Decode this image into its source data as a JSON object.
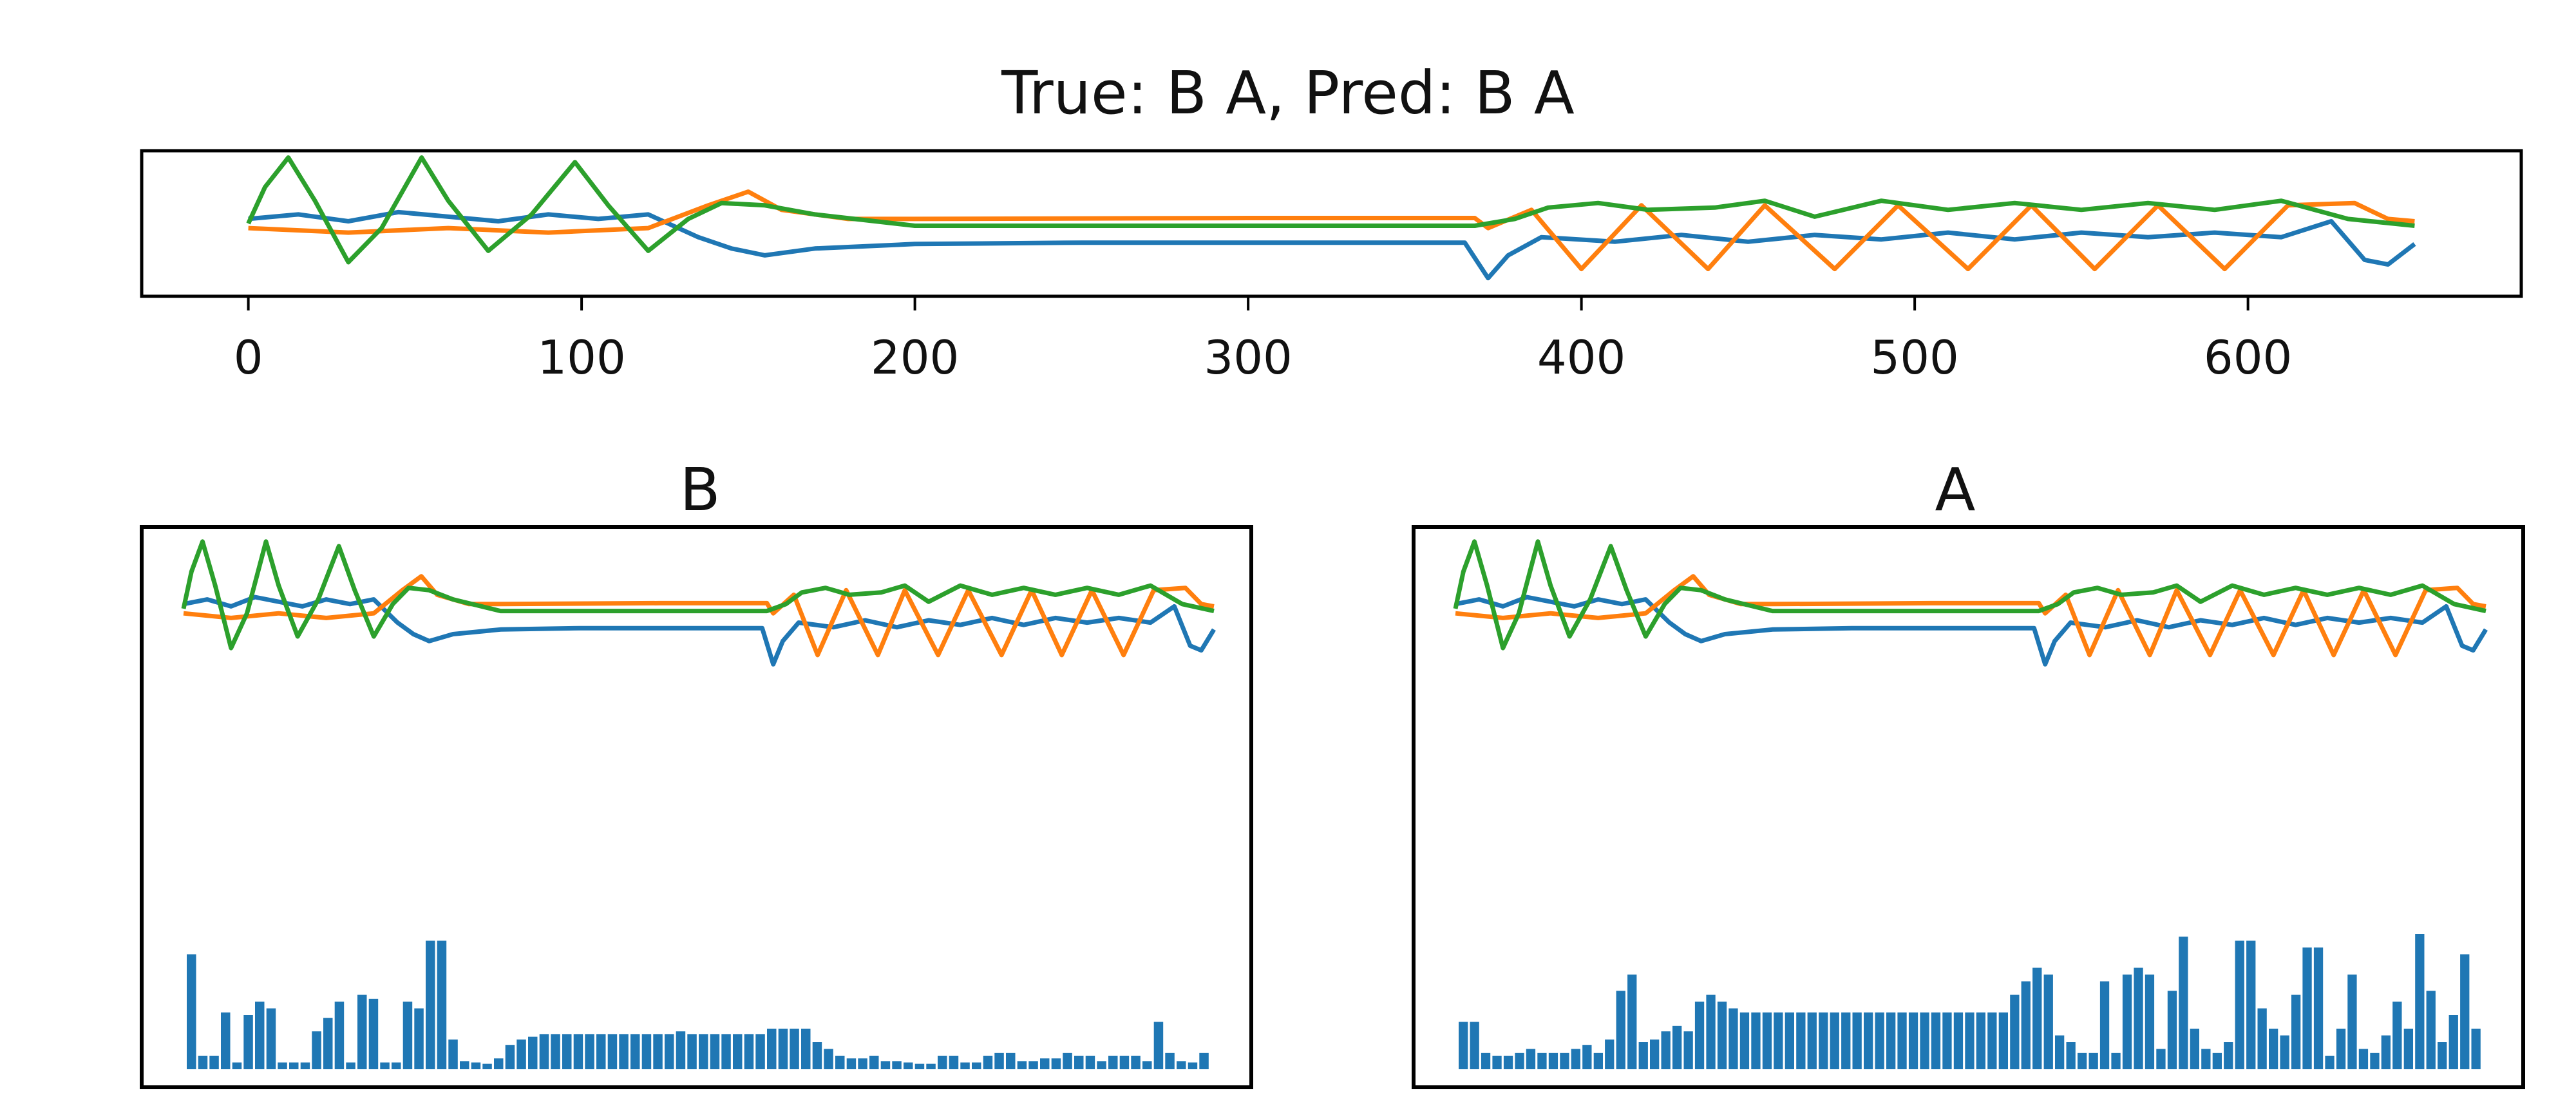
{
  "figure_title": "True: B A, Pred: B A",
  "chart_data": [
    {
      "type": "line",
      "title": "True: B A, Pred: B A",
      "xlabel": "",
      "ylabel": "",
      "xlim": [
        -32,
        682
      ],
      "ylim": [
        -1.6,
        1.6
      ],
      "x_ticks": [
        "0",
        "100",
        "200",
        "300",
        "400",
        "500",
        "600"
      ],
      "grid": false,
      "series_colors": [
        "#1f77b4",
        "#ff7f0e",
        "#2ca02c"
      ],
      "note": "Three channels (blue, orange, green), x from 0 to 650; y axis unlabeled. Series given as [x, y] breakpoints read off the plot.",
      "series": [
        {
          "name": "blue",
          "points": [
            [
              0,
              0.1
            ],
            [
              15,
              0.2
            ],
            [
              30,
              0.05
            ],
            [
              45,
              0.25
            ],
            [
              60,
              0.15
            ],
            [
              75,
              0.05
            ],
            [
              90,
              0.2
            ],
            [
              105,
              0.1
            ],
            [
              120,
              0.2
            ],
            [
              135,
              -0.3
            ],
            [
              145,
              -0.55
            ],
            [
              155,
              -0.7
            ],
            [
              170,
              -0.55
            ],
            [
              200,
              -0.45
            ],
            [
              250,
              -0.42
            ],
            [
              300,
              -0.42
            ],
            [
              365,
              -0.42
            ],
            [
              372,
              -1.2
            ],
            [
              378,
              -0.7
            ],
            [
              388,
              -0.3
            ],
            [
              410,
              -0.4
            ],
            [
              430,
              -0.25
            ],
            [
              450,
              -0.4
            ],
            [
              470,
              -0.25
            ],
            [
              490,
              -0.35
            ],
            [
              510,
              -0.2
            ],
            [
              530,
              -0.35
            ],
            [
              550,
              -0.2
            ],
            [
              570,
              -0.3
            ],
            [
              590,
              -0.2
            ],
            [
              610,
              -0.3
            ],
            [
              625,
              0.05
            ],
            [
              635,
              -0.8
            ],
            [
              642,
              -0.9
            ],
            [
              650,
              -0.45
            ]
          ]
        },
        {
          "name": "orange",
          "points": [
            [
              0,
              -0.1
            ],
            [
              30,
              -0.2
            ],
            [
              60,
              -0.1
            ],
            [
              90,
              -0.2
            ],
            [
              120,
              -0.1
            ],
            [
              138,
              0.4
            ],
            [
              150,
              0.7
            ],
            [
              160,
              0.3
            ],
            [
              180,
              0.1
            ],
            [
              200,
              0.1
            ],
            [
              300,
              0.12
            ],
            [
              368,
              0.12
            ],
            [
              372,
              -0.1
            ],
            [
              385,
              0.3
            ],
            [
              400,
              -1.0
            ],
            [
              418,
              0.4
            ],
            [
              438,
              -1.0
            ],
            [
              455,
              0.4
            ],
            [
              476,
              -1.0
            ],
            [
              495,
              0.4
            ],
            [
              516,
              -1.0
            ],
            [
              535,
              0.4
            ],
            [
              554,
              -1.0
            ],
            [
              573,
              0.4
            ],
            [
              593,
              -1.0
            ],
            [
              612,
              0.4
            ],
            [
              632,
              0.45
            ],
            [
              642,
              0.1
            ],
            [
              650,
              0.05
            ]
          ]
        },
        {
          "name": "green",
          "points": [
            [
              0,
              0.0
            ],
            [
              5,
              0.8
            ],
            [
              12,
              1.45
            ],
            [
              20,
              0.5
            ],
            [
              30,
              -0.85
            ],
            [
              40,
              -0.1
            ],
            [
              52,
              1.45
            ],
            [
              60,
              0.5
            ],
            [
              72,
              -0.6
            ],
            [
              85,
              0.2
            ],
            [
              98,
              1.35
            ],
            [
              108,
              0.4
            ],
            [
              120,
              -0.6
            ],
            [
              132,
              0.1
            ],
            [
              142,
              0.45
            ],
            [
              155,
              0.4
            ],
            [
              170,
              0.2
            ],
            [
              200,
              -0.05
            ],
            [
              300,
              -0.05
            ],
            [
              368,
              -0.05
            ],
            [
              380,
              0.1
            ],
            [
              390,
              0.35
            ],
            [
              405,
              0.45
            ],
            [
              420,
              0.3
            ],
            [
              440,
              0.35
            ],
            [
              455,
              0.5
            ],
            [
              470,
              0.15
            ],
            [
              490,
              0.5
            ],
            [
              510,
              0.3
            ],
            [
              530,
              0.45
            ],
            [
              550,
              0.3
            ],
            [
              570,
              0.45
            ],
            [
              590,
              0.3
            ],
            [
              610,
              0.5
            ],
            [
              630,
              0.1
            ],
            [
              650,
              -0.05
            ]
          ]
        }
      ]
    },
    {
      "type": "line+bar",
      "title": "B",
      "xlabel": "",
      "ylabel": "",
      "grid": false,
      "note": "No axis ticks shown. Same three signals scaled into the top of the panel; blue bars along the bottom show relative weights (0-1) per step.",
      "bar_color": "#1f77b4",
      "bar_values": [
        0.85,
        0.1,
        0.1,
        0.42,
        0.05,
        0.4,
        0.5,
        0.45,
        0.05,
        0.05,
        0.05,
        0.28,
        0.38,
        0.5,
        0.05,
        0.55,
        0.52,
        0.05,
        0.05,
        0.5,
        0.45,
        0.95,
        0.95,
        0.22,
        0.06,
        0.05,
        0.04,
        0.08,
        0.18,
        0.22,
        0.24,
        0.26,
        0.26,
        0.26,
        0.26,
        0.26,
        0.26,
        0.26,
        0.26,
        0.26,
        0.26,
        0.26,
        0.26,
        0.28,
        0.26,
        0.26,
        0.26,
        0.26,
        0.26,
        0.26,
        0.26,
        0.3,
        0.3,
        0.3,
        0.3,
        0.2,
        0.15,
        0.1,
        0.08,
        0.08,
        0.1,
        0.06,
        0.06,
        0.05,
        0.04,
        0.04,
        0.1,
        0.1,
        0.05,
        0.05,
        0.1,
        0.12,
        0.12,
        0.06,
        0.06,
        0.08,
        0.08,
        0.12,
        0.1,
        0.1,
        0.06,
        0.1,
        0.1,
        0.1,
        0.06,
        0.35,
        0.12,
        0.06,
        0.05,
        0.12
      ]
    },
    {
      "type": "line+bar",
      "title": "A",
      "xlabel": "",
      "ylabel": "",
      "grid": false,
      "note": "No axis ticks shown. Same three signals scaled into the top of the panel; blue bars along the bottom show relative weights (0-1) per step.",
      "bar_color": "#1f77b4",
      "bar_values": [
        0.35,
        0.35,
        0.12,
        0.1,
        0.1,
        0.12,
        0.15,
        0.12,
        0.12,
        0.12,
        0.15,
        0.18,
        0.12,
        0.22,
        0.58,
        0.7,
        0.2,
        0.22,
        0.28,
        0.32,
        0.28,
        0.5,
        0.55,
        0.5,
        0.45,
        0.42,
        0.42,
        0.42,
        0.42,
        0.42,
        0.42,
        0.42,
        0.42,
        0.42,
        0.42,
        0.42,
        0.42,
        0.42,
        0.42,
        0.42,
        0.42,
        0.42,
        0.42,
        0.42,
        0.42,
        0.42,
        0.42,
        0.42,
        0.42,
        0.55,
        0.65,
        0.75,
        0.7,
        0.25,
        0.2,
        0.12,
        0.12,
        0.65,
        0.12,
        0.7,
        0.75,
        0.7,
        0.15,
        0.58,
        0.98,
        0.3,
        0.15,
        0.12,
        0.2,
        0.95,
        0.95,
        0.45,
        0.3,
        0.25,
        0.55,
        0.9,
        0.9,
        0.1,
        0.3,
        0.7,
        0.15,
        0.12,
        0.25,
        0.5,
        0.3,
        1.0,
        0.58,
        0.2,
        0.4,
        0.85,
        0.3
      ]
    }
  ]
}
